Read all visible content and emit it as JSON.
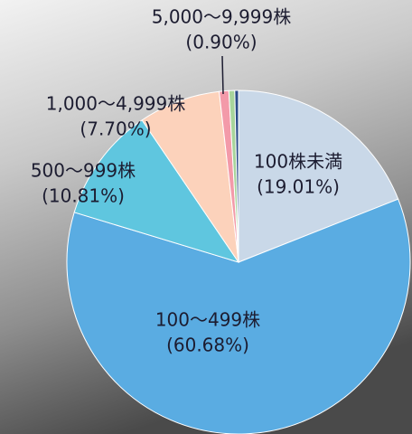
{
  "chart_data": {
    "type": "pie",
    "categories": [
      "100株未満",
      "100～499株",
      "500～999株",
      "1,000～4,999株",
      "5,000～9,999株",
      null,
      null
    ],
    "values": [
      19.01,
      60.68,
      10.81,
      7.7,
      0.9,
      0.55,
      0.35
    ],
    "value_labels": [
      "(19.01%)",
      "(60.68%)",
      "(10.81%)",
      "(7.70%)",
      "(0.90%)",
      null,
      null
    ],
    "colors": [
      "#c9d8e8",
      "#5aace2",
      "#5fc6df",
      "#fcd2bb",
      "#f39aa9",
      "#a8d49b",
      "#2b4b88"
    ]
  }
}
